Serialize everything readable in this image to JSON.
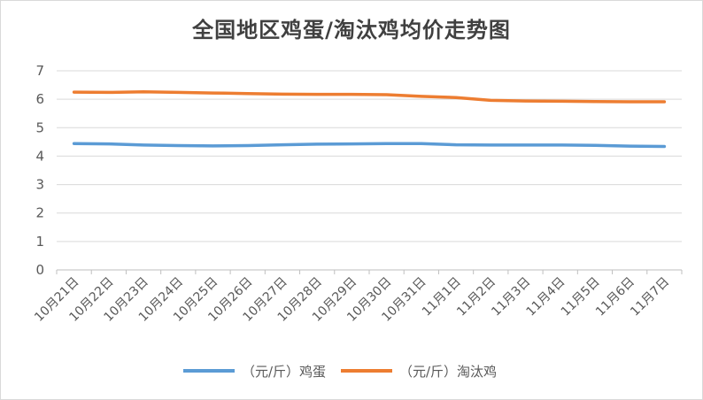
{
  "chart_data": {
    "type": "line",
    "title": "全国地区鸡蛋/淘汰鸡均价走势图",
    "xlabel": "",
    "ylabel": "",
    "ylim": [
      0,
      7
    ],
    "yticks": [
      "0",
      "1",
      "2",
      "3",
      "4",
      "5",
      "6",
      "7"
    ],
    "grid": true,
    "legend_position": "bottom",
    "categories": [
      "10月21日",
      "10月22日",
      "10月23日",
      "10月24日",
      "10月25日",
      "10月26日",
      "10月27日",
      "10月28日",
      "10月29日",
      "10月30日",
      "10月31日",
      "11月1日",
      "11月2日",
      "11月3日",
      "11月4日",
      "11月5日",
      "11月6日",
      "11月7日"
    ],
    "series": [
      {
        "name": "（元/斤）鸡蛋",
        "color": "#5b9bd5",
        "values": [
          4.44,
          4.43,
          4.39,
          4.37,
          4.36,
          4.37,
          4.4,
          4.42,
          4.43,
          4.44,
          4.44,
          4.4,
          4.39,
          4.39,
          4.39,
          4.38,
          4.35,
          4.34
        ]
      },
      {
        "name": "（元/斤）淘汰鸡",
        "color": "#ed7d31",
        "values": [
          6.25,
          6.24,
          6.26,
          6.24,
          6.22,
          6.2,
          6.18,
          6.17,
          6.17,
          6.16,
          6.1,
          6.06,
          5.96,
          5.94,
          5.93,
          5.92,
          5.91,
          5.91
        ]
      }
    ]
  }
}
